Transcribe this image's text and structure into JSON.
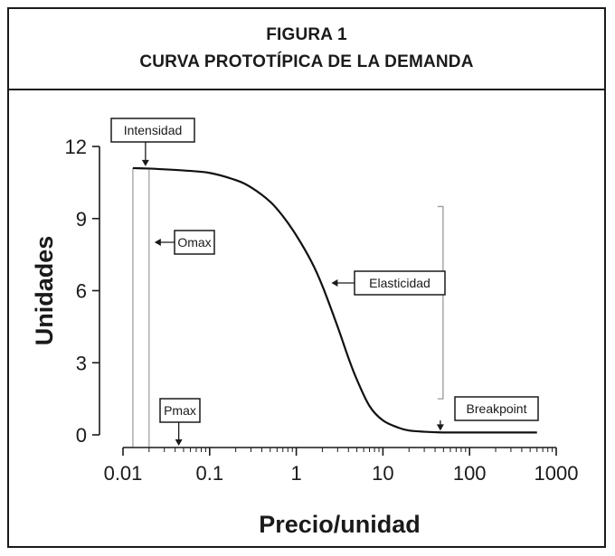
{
  "figure": {
    "label": "FIGURA 1",
    "title": "CURVA PROTOTÍPICA DE LA DEMANDA"
  },
  "chart_data": {
    "type": "line",
    "title": "CURVA PROTOTÍPICA DE LA DEMANDA",
    "xlabel": "Precio/unidad",
    "ylabel": "Unidades",
    "x_scale": "log",
    "xlim": [
      0.01,
      1000
    ],
    "ylim": [
      0,
      12
    ],
    "x_ticks": [
      0.01,
      0.1,
      1,
      10,
      100,
      1000
    ],
    "x_tick_labels": [
      "0.01",
      "0.1",
      "1",
      "10",
      "100",
      "1000"
    ],
    "y_ticks": [
      0,
      3,
      6,
      9,
      12
    ],
    "y_tick_labels": [
      "0",
      "3",
      "6",
      "9",
      "12"
    ],
    "grid": false,
    "series": [
      {
        "x": [
          0.013,
          0.02,
          0.05,
          0.1,
          0.2,
          0.3,
          0.5,
          0.7,
          1,
          1.5,
          2,
          3,
          4,
          5,
          7,
          10,
          15,
          20,
          30,
          50,
          100,
          200,
          600
        ],
        "y": [
          11.1,
          11.08,
          11.0,
          10.9,
          10.6,
          10.3,
          9.7,
          9.1,
          8.3,
          7.2,
          6.2,
          4.5,
          3.2,
          2.3,
          1.2,
          0.6,
          0.3,
          0.18,
          0.13,
          0.1,
          0.1,
          0.1,
          0.1
        ]
      }
    ],
    "annotations": [
      {
        "label": "Intensidad",
        "x": 0.015,
        "y": 11.1
      },
      {
        "label": "Omax",
        "x": 0.02,
        "y": 8.1
      },
      {
        "label": "Pmax",
        "x": 0.044,
        "y": 0
      },
      {
        "label": "Elasticidad",
        "x": 2.2,
        "y": 6.2
      },
      {
        "label": "Breakpoint",
        "x": 46,
        "y": 0.1
      }
    ],
    "reference_lines": [
      {
        "type": "vertical",
        "x": 0.013
      },
      {
        "type": "vertical",
        "x": 0.02
      }
    ],
    "bracket": {
      "x": 46,
      "y_from": 1.5,
      "y_to": 9.5
    }
  }
}
